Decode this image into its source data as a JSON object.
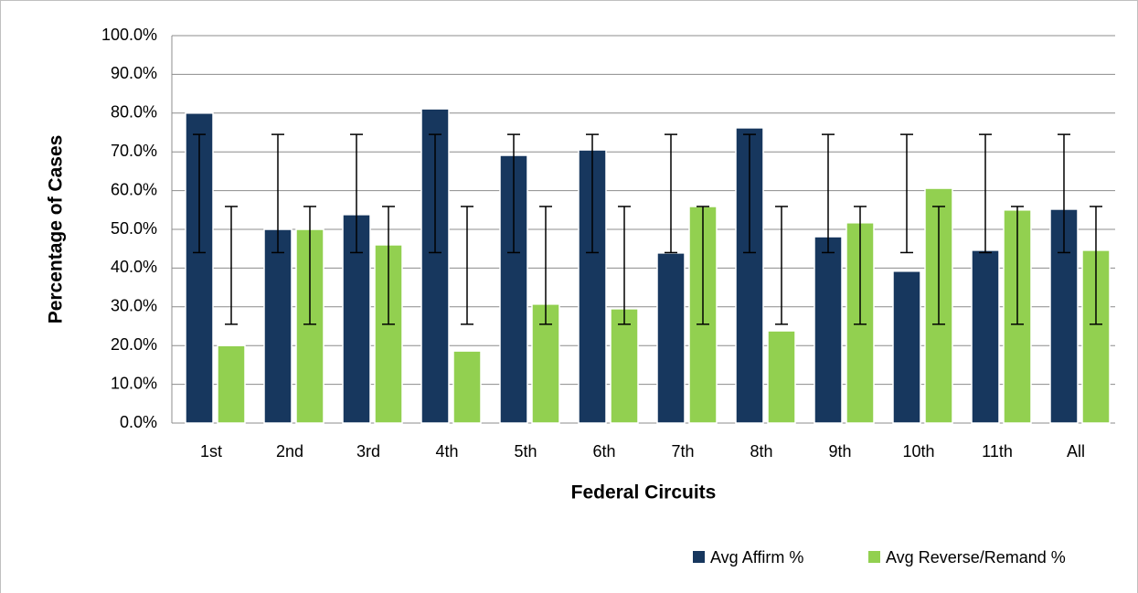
{
  "chart_data": {
    "type": "bar",
    "xlabel": "Federal Circuits",
    "ylabel": "Percentage of Cases",
    "categories": [
      "1st",
      "2nd",
      "3rd",
      "4th",
      "5th",
      "6th",
      "7th",
      "8th",
      "9th",
      "10th",
      "11th",
      "All"
    ],
    "series": [
      {
        "name": "Avg Affirm %",
        "color": "#17375e",
        "values": [
          80.0,
          50.0,
          53.8,
          81.1,
          69.1,
          70.5,
          43.9,
          76.2,
          48.1,
          39.2,
          44.6,
          55.2
        ],
        "error_low": 44.0,
        "error_high": 74.5
      },
      {
        "name": "Avg Reverse/Remand %",
        "color": "#92d050",
        "values": [
          20.0,
          50.0,
          46.0,
          18.6,
          30.7,
          29.5,
          55.9,
          23.8,
          51.7,
          60.6,
          55.0,
          44.6
        ],
        "error_low": 25.5,
        "error_high": 55.9
      }
    ],
    "ylim": [
      0,
      100
    ],
    "yticks": [
      {
        "value": 0,
        "label": "0.0%"
      },
      {
        "value": 10,
        "label": "10.0%"
      },
      {
        "value": 20,
        "label": "20.0%"
      },
      {
        "value": 30,
        "label": "30.0%"
      },
      {
        "value": 40,
        "label": "40.0%"
      },
      {
        "value": 50,
        "label": "50.0%"
      },
      {
        "value": 60,
        "label": "60.0%"
      },
      {
        "value": 70,
        "label": "70.0%"
      },
      {
        "value": 80,
        "label": "80.0%"
      },
      {
        "value": 90,
        "label": "90.0%"
      },
      {
        "value": 100,
        "label": "100.0%"
      }
    ],
    "grid": true,
    "legend": "bottom"
  }
}
